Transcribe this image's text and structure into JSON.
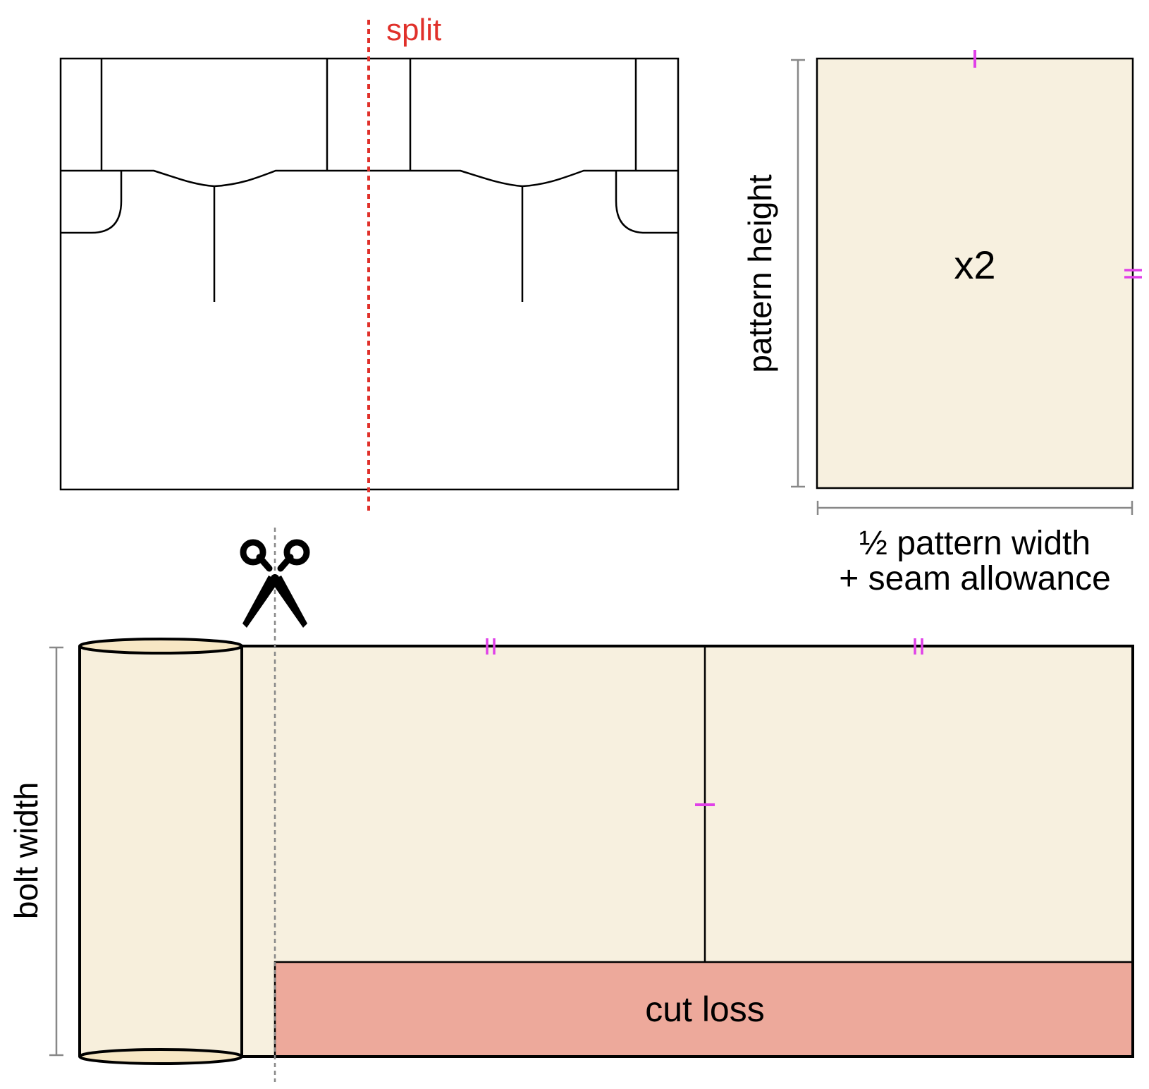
{
  "labels": {
    "split": "split",
    "pattern_height": "pattern height",
    "multiplier": "x2",
    "half_width_line1": "½ pattern width",
    "half_width_line2": "+ seam allowance",
    "bolt_width": "bolt width",
    "cut_loss": "cut loss"
  },
  "icons": {
    "scissors": "scissors-icon"
  },
  "colors": {
    "fabric": "#f7f0df",
    "roll_fill": "#f7efdc",
    "cut_loss": "#eda99b",
    "split_line": "#e0302a",
    "notch": "#e040e8",
    "dimension": "#888888",
    "outline": "#000000"
  }
}
